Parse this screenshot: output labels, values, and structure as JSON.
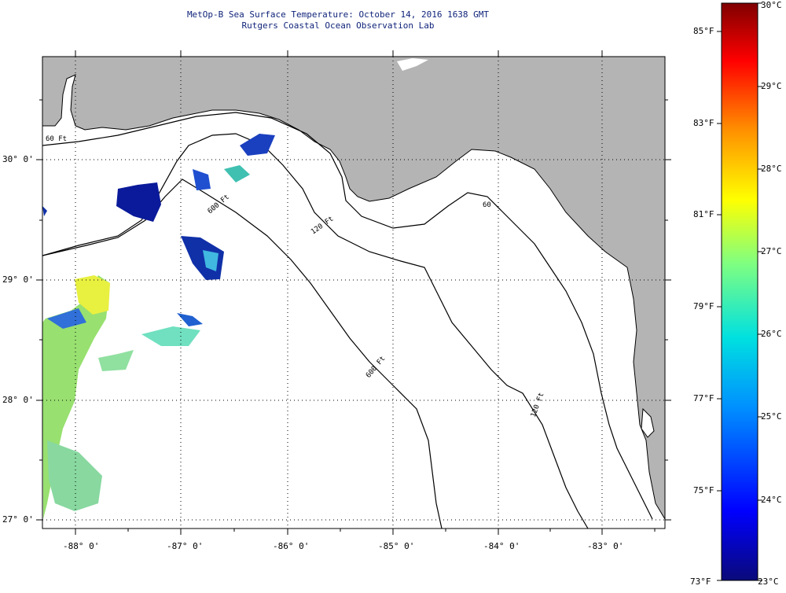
{
  "header": {
    "title": "MetOp-B Sea Surface Temperature:  October 14, 2016 1638 GMT",
    "subtitle": "Rutgers Coastal Ocean Observation Lab"
  },
  "axes": {
    "lon_labels": [
      "-88° 0'",
      "-87° 0'",
      "-86° 0'",
      "-85° 0'",
      "-84° 0'",
      "-83° 0'"
    ],
    "lat_labels": [
      "30° 0'",
      "29° 0'",
      "28° 0'",
      "27° 0'"
    ]
  },
  "contours": {
    "labels": [
      "60 Ft",
      "120 Ft",
      "600 Ft",
      "60",
      "120 Ft",
      "600 Ft"
    ]
  },
  "colorbar": {
    "celsius": [
      "30°C",
      "29°C",
      "28°C",
      "27°C",
      "26°C",
      "25°C",
      "24°C",
      "23°C"
    ],
    "fahrenheit": [
      "85°F",
      "83°F",
      "81°F",
      "79°F",
      "77°F",
      "75°F",
      "73°F"
    ],
    "range_c": [
      23,
      30
    ]
  },
  "colors": {
    "land": "#b4b4b4",
    "ocean": "#ffffff",
    "title": "#10247a",
    "grid": "#000000"
  }
}
